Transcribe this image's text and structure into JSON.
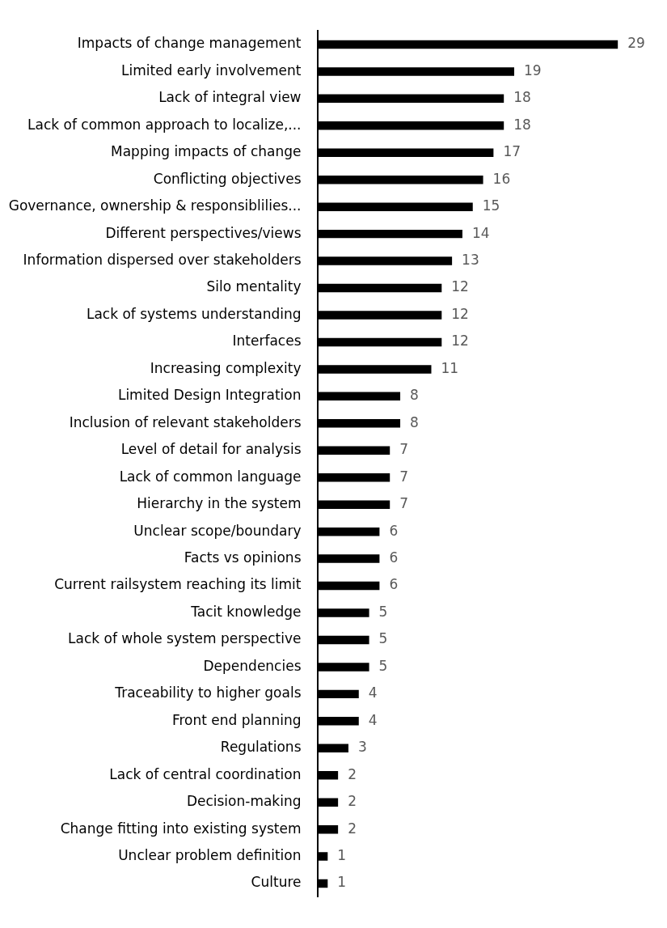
{
  "chart_data": {
    "type": "bar",
    "orientation": "horizontal",
    "categories": [
      "Impacts of change management",
      "Limited early involvement",
      "Lack of integral view",
      "Lack of common approach to localize,...",
      "Mapping impacts of change",
      "Conflicting objectives",
      "Governance, ownership & responsiblilies...",
      "Different perspectives/views",
      "Information dispersed over stakeholders",
      "Silo mentality",
      "Lack of systems understanding",
      "Interfaces",
      "Increasing complexity",
      "Limited Design Integration",
      "Inclusion of relevant stakeholders",
      "Level of detail for analysis",
      "Lack of common language",
      "Hierarchy in the system",
      "Unclear scope/boundary",
      "Facts vs opinions",
      "Current railsystem reaching its limit",
      "Tacit knowledge",
      "Lack of whole system perspective",
      "Dependencies",
      "Traceability to higher goals",
      "Front end planning",
      "Regulations",
      "Lack of central coordination",
      "Decision-making",
      "Change fitting into existing system",
      "Unclear problem definition",
      "Culture"
    ],
    "values": [
      29,
      19,
      18,
      18,
      17,
      16,
      15,
      14,
      13,
      12,
      12,
      12,
      11,
      8,
      8,
      7,
      7,
      7,
      6,
      6,
      6,
      5,
      5,
      5,
      4,
      4,
      3,
      2,
      2,
      2,
      1,
      1
    ],
    "color": "#000000",
    "data_labels": true,
    "grid": false,
    "legend": false,
    "tick_labels": "y"
  }
}
